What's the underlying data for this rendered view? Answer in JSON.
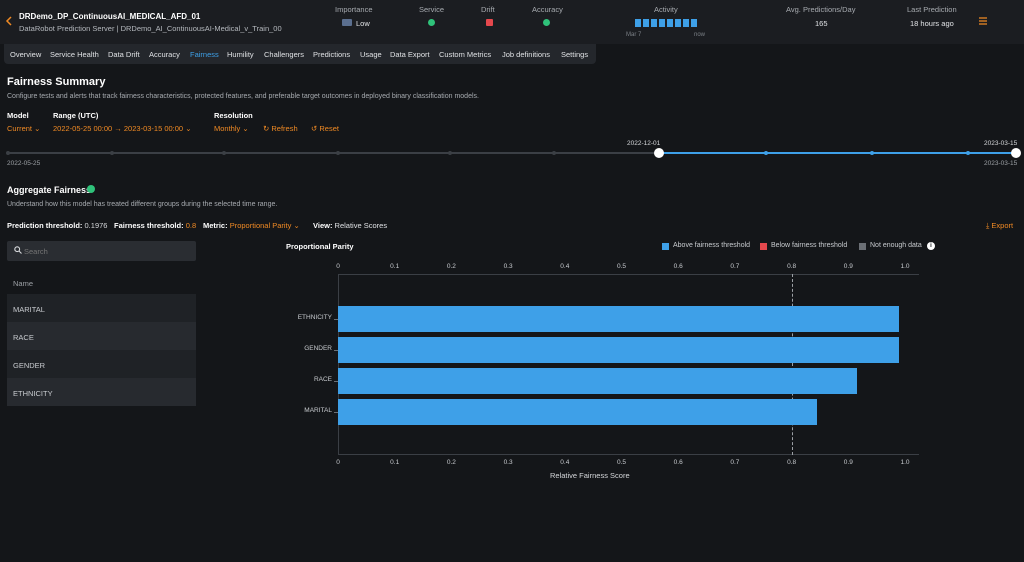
{
  "header": {
    "back_icon": "chevron-left-icon",
    "deployment_name": "DRDemo_DP_ContinuousAI_MEDICAL_AFD_01",
    "deployment_subtitle": "DataRobot Prediction Server | DRDemo_AI_ContinuousAI-Medical_v_Train_00",
    "importance_label": "Importance",
    "importance_value": "Low",
    "service_label": "Service",
    "drift_label": "Drift",
    "accuracy_label": "Accuracy",
    "activity_label": "Activity",
    "activity_start": "Mar 7",
    "activity_end": "now",
    "avg_predictions_label": "Avg. Predictions/Day",
    "avg_predictions_value": "165",
    "last_prediction_label": "Last Prediction",
    "last_prediction_value": "18 hours ago",
    "menu_icon": "hamburger-menu-icon",
    "colors": {
      "service": "#2fc27a",
      "drift": "#e5484d",
      "accuracy": "#2fc27a",
      "accent": "#3ea0e8",
      "orange": "#f08a24"
    }
  },
  "tabs": [
    {
      "label": "Overview"
    },
    {
      "label": "Service Health"
    },
    {
      "label": "Data Drift"
    },
    {
      "label": "Accuracy"
    },
    {
      "label": "Fairness",
      "active": true
    },
    {
      "label": "Humility"
    },
    {
      "label": "Challengers"
    },
    {
      "label": "Predictions"
    },
    {
      "label": "Usage"
    },
    {
      "label": "Data Export"
    },
    {
      "label": "Custom Metrics"
    },
    {
      "label": "Job definitions"
    },
    {
      "label": "Settings"
    }
  ],
  "summary": {
    "title": "Fairness Summary",
    "description": "Configure tests and alerts that track fairness characteristics, protected features, and preferable target outcomes in deployed binary classification models.",
    "model_label": "Model",
    "model_value": "Current",
    "range_label": "Range (UTC)",
    "range_value": "2022-05-25  00:00 → 2023-03-15  00:00",
    "resolution_label": "Resolution",
    "resolution_value": "Monthly",
    "refresh_label": "Refresh",
    "reset_label": "Reset"
  },
  "timeline": {
    "start_date": "2022-05-25",
    "end_date": "2023-03-15",
    "selected_start": "2022-12-01",
    "selected_end": "2023-03-15"
  },
  "aggregate": {
    "title": "Aggregate Fairness",
    "description": "Understand how this model has treated different groups during the selected time range.",
    "prediction_threshold_label": "Prediction threshold:",
    "prediction_threshold_value": "0.1976",
    "fairness_threshold_label": "Fairness threshold:",
    "fairness_threshold_value": "0.8",
    "metric_label": "Metric:",
    "metric_value": "Proportional Parity",
    "view_label": "View:",
    "view_value": "Relative Scores",
    "export_label": "Export",
    "search_placeholder": "Search",
    "list_header": "Name",
    "features": [
      "MARITAL",
      "RACE",
      "GENDER",
      "ETHNICITY"
    ]
  },
  "chart_data": {
    "type": "bar",
    "orientation": "horizontal",
    "title": "Proportional Parity",
    "xlabel": "Relative Fairness Score",
    "ylabel": "",
    "xlim": [
      0,
      1.0
    ],
    "x_ticks": [
      "0",
      "0.1",
      "0.2",
      "0.3",
      "0.4",
      "0.5",
      "0.6",
      "0.7",
      "0.8",
      "0.9",
      "1.0"
    ],
    "categories": [
      "ETHNICITY",
      "GENDER",
      "RACE",
      "MARITAL"
    ],
    "values": [
      0.99,
      0.99,
      0.915,
      0.845
    ],
    "threshold": 0.8,
    "legend": [
      {
        "label": "Above fairness threshold",
        "color": "#3ea0e8"
      },
      {
        "label": "Below fairness threshold",
        "color": "#e5484d"
      },
      {
        "label": "Not enough data",
        "color": "#6b6f75"
      }
    ],
    "legend_position": "top-right",
    "info_icon": "info-icon"
  }
}
